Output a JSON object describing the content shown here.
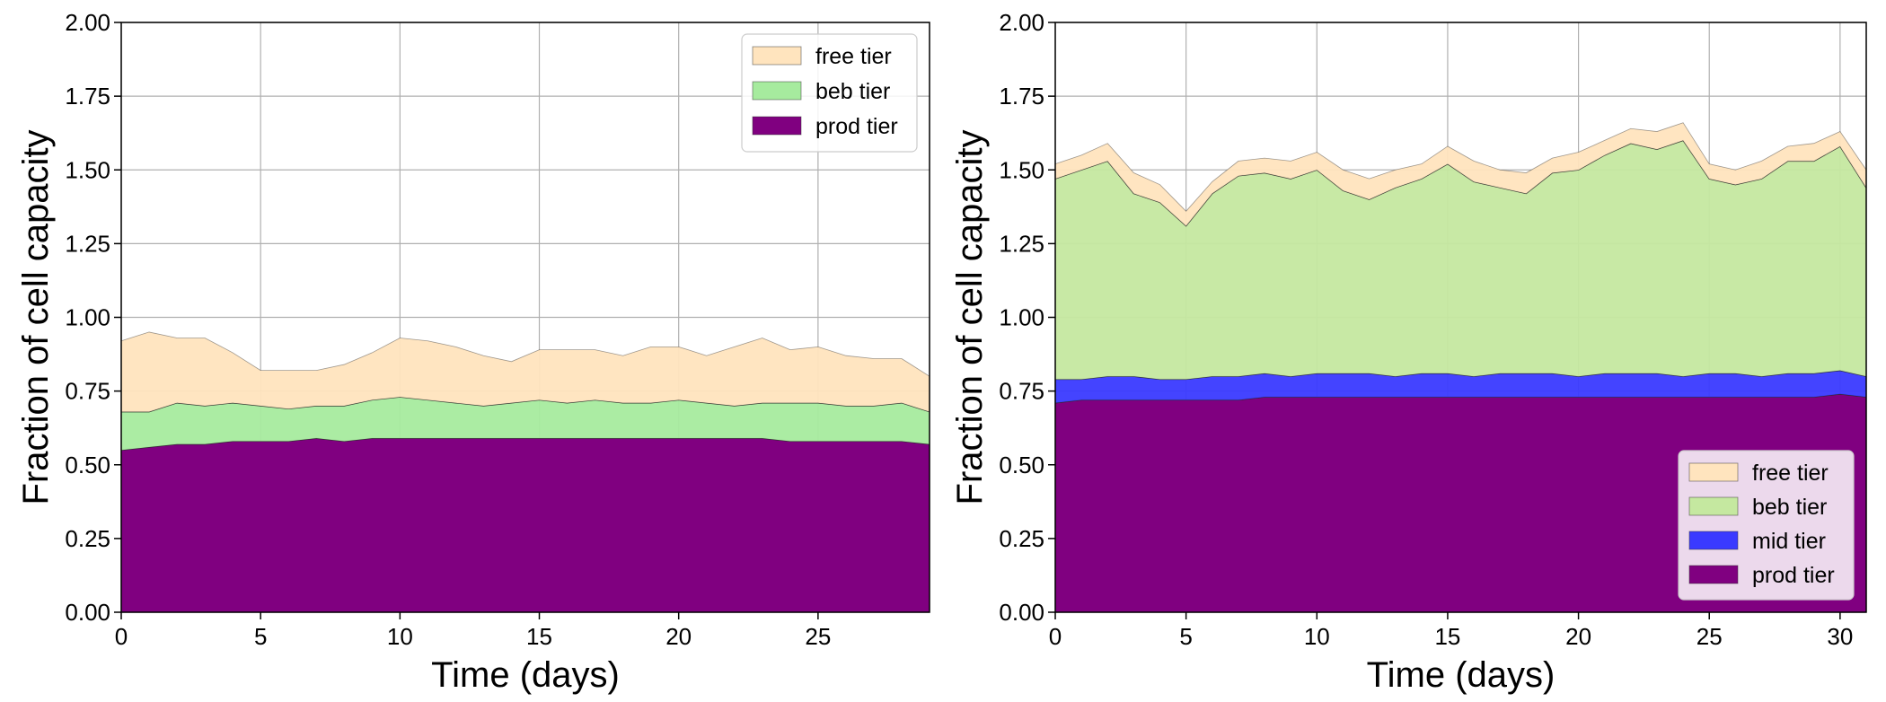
{
  "chart_data": [
    {
      "type": "area",
      "stacked": true,
      "xlabel": "Time (days)",
      "ylabel": "Fraction of cell capacity",
      "xlim": [
        0,
        29
      ],
      "ylim": [
        0,
        2.0
      ],
      "xticks": [
        0,
        5,
        10,
        15,
        20,
        25
      ],
      "yticks": [
        0.0,
        0.25,
        0.5,
        0.75,
        1.0,
        1.25,
        1.5,
        1.75,
        2.0
      ],
      "ytick_labels": [
        "0.00",
        "0.25",
        "0.50",
        "0.75",
        "1.00",
        "1.25",
        "1.50",
        "1.75",
        "2.00"
      ],
      "grid": true,
      "legend_position": "top-right",
      "x": [
        0,
        1,
        2,
        3,
        4,
        5,
        6,
        7,
        8,
        9,
        10,
        11,
        12,
        13,
        14,
        15,
        16,
        17,
        18,
        19,
        20,
        21,
        22,
        23,
        24,
        25,
        26,
        27,
        28,
        29
      ],
      "series": [
        {
          "name": "prod tier",
          "color": "#800080",
          "values": [
            0.55,
            0.56,
            0.57,
            0.57,
            0.58,
            0.58,
            0.58,
            0.59,
            0.58,
            0.59,
            0.59,
            0.59,
            0.59,
            0.59,
            0.59,
            0.59,
            0.59,
            0.59,
            0.59,
            0.59,
            0.59,
            0.59,
            0.59,
            0.59,
            0.58,
            0.58,
            0.58,
            0.58,
            0.58,
            0.57
          ]
        },
        {
          "name": "beb tier",
          "color": "#a6eb9e",
          "values": [
            0.13,
            0.12,
            0.14,
            0.13,
            0.13,
            0.12,
            0.11,
            0.11,
            0.12,
            0.13,
            0.14,
            0.13,
            0.12,
            0.11,
            0.12,
            0.13,
            0.12,
            0.13,
            0.12,
            0.12,
            0.13,
            0.12,
            0.11,
            0.12,
            0.13,
            0.13,
            0.12,
            0.12,
            0.13,
            0.11
          ]
        },
        {
          "name": "free tier",
          "color": "#ffe4be",
          "values": [
            0.24,
            0.27,
            0.22,
            0.23,
            0.17,
            0.12,
            0.13,
            0.12,
            0.14,
            0.16,
            0.2,
            0.2,
            0.19,
            0.17,
            0.14,
            0.17,
            0.18,
            0.17,
            0.16,
            0.19,
            0.18,
            0.16,
            0.2,
            0.22,
            0.18,
            0.19,
            0.17,
            0.16,
            0.15,
            0.12
          ]
        }
      ]
    },
    {
      "type": "area",
      "stacked": true,
      "xlabel": "Time (days)",
      "ylabel": "Fraction of cell capacity",
      "xlim": [
        0,
        31
      ],
      "ylim": [
        0,
        2.0
      ],
      "xticks": [
        0,
        5,
        10,
        15,
        20,
        25,
        30
      ],
      "yticks": [
        0.0,
        0.25,
        0.5,
        0.75,
        1.0,
        1.25,
        1.5,
        1.75,
        2.0
      ],
      "ytick_labels": [
        "0.00",
        "0.25",
        "0.50",
        "0.75",
        "1.00",
        "1.25",
        "1.50",
        "1.75",
        "2.00"
      ],
      "grid": true,
      "legend_position": "bottom-right",
      "x": [
        0,
        1,
        2,
        3,
        4,
        5,
        6,
        7,
        8,
        9,
        10,
        11,
        12,
        13,
        14,
        15,
        16,
        17,
        18,
        19,
        20,
        21,
        22,
        23,
        24,
        25,
        26,
        27,
        28,
        29,
        30,
        31
      ],
      "series": [
        {
          "name": "prod tier",
          "color": "#800080",
          "values": [
            0.71,
            0.72,
            0.72,
            0.72,
            0.72,
            0.72,
            0.72,
            0.72,
            0.73,
            0.73,
            0.73,
            0.73,
            0.73,
            0.73,
            0.73,
            0.73,
            0.73,
            0.73,
            0.73,
            0.73,
            0.73,
            0.73,
            0.73,
            0.73,
            0.73,
            0.73,
            0.73,
            0.73,
            0.73,
            0.73,
            0.74,
            0.73
          ]
        },
        {
          "name": "mid tier",
          "color": "#3a3aff",
          "values": [
            0.08,
            0.07,
            0.08,
            0.08,
            0.07,
            0.07,
            0.08,
            0.08,
            0.08,
            0.07,
            0.08,
            0.08,
            0.08,
            0.07,
            0.08,
            0.08,
            0.07,
            0.08,
            0.08,
            0.08,
            0.07,
            0.08,
            0.08,
            0.08,
            0.07,
            0.08,
            0.08,
            0.07,
            0.08,
            0.08,
            0.08,
            0.07
          ]
        },
        {
          "name": "beb tier",
          "color": "#c5e8a0",
          "values": [
            0.68,
            0.71,
            0.73,
            0.62,
            0.6,
            0.52,
            0.62,
            0.68,
            0.68,
            0.67,
            0.69,
            0.62,
            0.59,
            0.64,
            0.66,
            0.71,
            0.66,
            0.63,
            0.61,
            0.68,
            0.7,
            0.74,
            0.78,
            0.76,
            0.8,
            0.66,
            0.64,
            0.67,
            0.72,
            0.72,
            0.76,
            0.64
          ]
        },
        {
          "name": "free tier",
          "color": "#ffe4be",
          "values": [
            0.05,
            0.05,
            0.06,
            0.07,
            0.06,
            0.05,
            0.04,
            0.05,
            0.05,
            0.06,
            0.06,
            0.07,
            0.07,
            0.06,
            0.05,
            0.06,
            0.07,
            0.06,
            0.07,
            0.05,
            0.06,
            0.05,
            0.05,
            0.06,
            0.06,
            0.05,
            0.05,
            0.06,
            0.05,
            0.06,
            0.05,
            0.06
          ]
        }
      ]
    }
  ]
}
